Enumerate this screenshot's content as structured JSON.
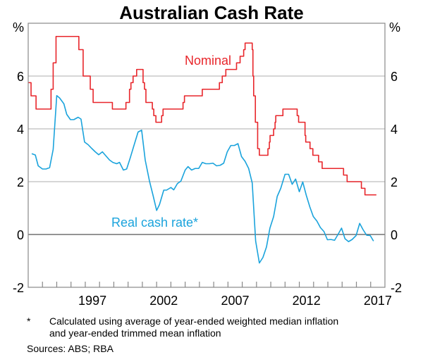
{
  "chart_data": {
    "type": "line",
    "title": "Australian Cash Rate",
    "ylabel_left": "%",
    "ylabel_right": "%",
    "ylim": [
      -2,
      8
    ],
    "yticks": [
      -2,
      0,
      2,
      4,
      6
    ],
    "xlim": [
      1993,
      2018
    ],
    "xtick_labels": [
      "1997",
      "2002",
      "2007",
      "2012",
      "2017"
    ],
    "grid": true,
    "series": [
      {
        "name": "Nominal",
        "label": "Nominal",
        "color": "#e8262b",
        "step": true,
        "points": [
          [
            1993.0,
            5.75
          ],
          [
            1993.2,
            5.25
          ],
          [
            1993.55,
            4.75
          ],
          [
            1994.6,
            5.5
          ],
          [
            1994.75,
            6.5
          ],
          [
            1994.95,
            7.5
          ],
          [
            1996.55,
            7.0
          ],
          [
            1996.85,
            6.0
          ],
          [
            1997.35,
            5.5
          ],
          [
            1997.55,
            5.0
          ],
          [
            1998.9,
            4.75
          ],
          [
            1999.85,
            5.0
          ],
          [
            2000.1,
            5.5
          ],
          [
            2000.2,
            5.75
          ],
          [
            2000.35,
            6.0
          ],
          [
            2000.6,
            6.25
          ],
          [
            2001.05,
            5.75
          ],
          [
            2001.15,
            5.5
          ],
          [
            2001.25,
            5.0
          ],
          [
            2001.7,
            4.75
          ],
          [
            2001.8,
            4.5
          ],
          [
            2001.95,
            4.25
          ],
          [
            2002.35,
            4.5
          ],
          [
            2002.45,
            4.75
          ],
          [
            2003.85,
            5.0
          ],
          [
            2003.95,
            5.25
          ],
          [
            2005.2,
            5.5
          ],
          [
            2006.4,
            5.75
          ],
          [
            2006.6,
            6.0
          ],
          [
            2006.85,
            6.25
          ],
          [
            2007.6,
            6.5
          ],
          [
            2007.85,
            6.75
          ],
          [
            2008.1,
            7.0
          ],
          [
            2008.2,
            7.25
          ],
          [
            2008.7,
            7.0
          ],
          [
            2008.75,
            6.0
          ],
          [
            2008.8,
            5.25
          ],
          [
            2008.92,
            4.25
          ],
          [
            2009.08,
            3.25
          ],
          [
            2009.2,
            3.0
          ],
          [
            2009.8,
            3.25
          ],
          [
            2009.9,
            3.5
          ],
          [
            2009.95,
            3.75
          ],
          [
            2010.2,
            4.0
          ],
          [
            2010.3,
            4.25
          ],
          [
            2010.35,
            4.5
          ],
          [
            2010.85,
            4.75
          ],
          [
            2011.85,
            4.5
          ],
          [
            2011.95,
            4.25
          ],
          [
            2012.4,
            3.75
          ],
          [
            2012.45,
            3.5
          ],
          [
            2012.75,
            3.25
          ],
          [
            2012.95,
            3.0
          ],
          [
            2013.35,
            2.75
          ],
          [
            2013.6,
            2.5
          ],
          [
            2015.1,
            2.25
          ],
          [
            2015.35,
            2.0
          ],
          [
            2016.35,
            1.75
          ],
          [
            2016.6,
            1.5
          ],
          [
            2017.4,
            1.5
          ]
        ]
      },
      {
        "name": "Real cash rate*",
        "label": "Real cash rate*",
        "color": "#1aa3dc",
        "step": false,
        "points": [
          [
            1993.25,
            3.06
          ],
          [
            1993.5,
            3.01
          ],
          [
            1993.7,
            2.6
          ],
          [
            1994.0,
            2.48
          ],
          [
            1994.25,
            2.48
          ],
          [
            1994.5,
            2.53
          ],
          [
            1994.75,
            3.22
          ],
          [
            1995.0,
            5.26
          ],
          [
            1995.2,
            5.17
          ],
          [
            1995.5,
            4.95
          ],
          [
            1995.7,
            4.55
          ],
          [
            1995.96,
            4.35
          ],
          [
            1996.2,
            4.35
          ],
          [
            1996.5,
            4.44
          ],
          [
            1996.7,
            4.37
          ],
          [
            1996.95,
            3.5
          ],
          [
            1997.2,
            3.4
          ],
          [
            1997.45,
            3.26
          ],
          [
            1997.7,
            3.13
          ],
          [
            1997.94,
            3.02
          ],
          [
            1998.2,
            3.13
          ],
          [
            1998.44,
            2.98
          ],
          [
            1998.7,
            2.82
          ],
          [
            1998.93,
            2.73
          ],
          [
            1999.2,
            2.68
          ],
          [
            1999.4,
            2.73
          ],
          [
            1999.67,
            2.44
          ],
          [
            1999.9,
            2.48
          ],
          [
            2000.15,
            2.9
          ],
          [
            2000.4,
            3.35
          ],
          [
            2000.7,
            3.88
          ],
          [
            2000.95,
            3.95
          ],
          [
            2001.2,
            2.82
          ],
          [
            2001.5,
            2.02
          ],
          [
            2001.75,
            1.48
          ],
          [
            2002.0,
            0.91
          ],
          [
            2002.2,
            1.13
          ],
          [
            2002.5,
            1.68
          ],
          [
            2002.7,
            1.68
          ],
          [
            2003.0,
            1.78
          ],
          [
            2003.2,
            1.69
          ],
          [
            2003.46,
            1.93
          ],
          [
            2003.7,
            2.02
          ],
          [
            2004.0,
            2.44
          ],
          [
            2004.2,
            2.57
          ],
          [
            2004.45,
            2.44
          ],
          [
            2004.7,
            2.5
          ],
          [
            2004.95,
            2.5
          ],
          [
            2005.2,
            2.73
          ],
          [
            2005.45,
            2.68
          ],
          [
            2005.7,
            2.68
          ],
          [
            2005.95,
            2.7
          ],
          [
            2006.2,
            2.6
          ],
          [
            2006.45,
            2.62
          ],
          [
            2006.7,
            2.7
          ],
          [
            2006.95,
            3.13
          ],
          [
            2007.2,
            3.37
          ],
          [
            2007.45,
            3.37
          ],
          [
            2007.7,
            3.44
          ],
          [
            2007.95,
            2.95
          ],
          [
            2008.2,
            2.77
          ],
          [
            2008.45,
            2.5
          ],
          [
            2008.7,
            1.95
          ],
          [
            2008.94,
            -0.25
          ],
          [
            2009.2,
            -1.08
          ],
          [
            2009.45,
            -0.87
          ],
          [
            2009.7,
            -0.47
          ],
          [
            2009.94,
            0.24
          ],
          [
            2010.2,
            0.68
          ],
          [
            2010.45,
            1.44
          ],
          [
            2010.7,
            1.75
          ],
          [
            2011.0,
            2.28
          ],
          [
            2011.25,
            2.28
          ],
          [
            2011.5,
            1.9
          ],
          [
            2011.74,
            2.1
          ],
          [
            2012.0,
            1.62
          ],
          [
            2012.24,
            1.99
          ],
          [
            2012.49,
            1.48
          ],
          [
            2012.74,
            1.04
          ],
          [
            2012.98,
            0.68
          ],
          [
            2013.23,
            0.51
          ],
          [
            2013.48,
            0.26
          ],
          [
            2013.73,
            0.11
          ],
          [
            2013.97,
            -0.2
          ],
          [
            2014.22,
            -0.19
          ],
          [
            2014.47,
            -0.22
          ],
          [
            2014.71,
            0.0
          ],
          [
            2014.96,
            0.24
          ],
          [
            2015.2,
            -0.16
          ],
          [
            2015.45,
            -0.27
          ],
          [
            2015.7,
            -0.19
          ],
          [
            2015.98,
            -0.04
          ],
          [
            2016.23,
            0.42
          ],
          [
            2016.47,
            0.18
          ],
          [
            2016.72,
            -0.03
          ],
          [
            2016.97,
            -0.04
          ],
          [
            2017.2,
            -0.25
          ]
        ]
      }
    ],
    "footnote_marker": "*",
    "footnote_line1": "Calculated using average of year-ended weighted median inflation",
    "footnote_line2": "and year-ended trimmed mean inflation",
    "sources": "Sources: ABS; RBA"
  }
}
